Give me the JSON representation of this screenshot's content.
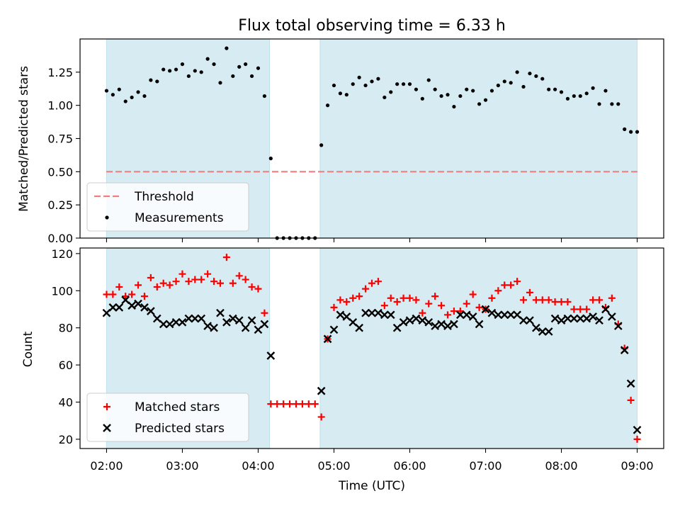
{
  "chart_data": [
    {
      "type": "scatter",
      "title": "Flux total observing time = 6.33 h",
      "xlabel": "",
      "ylabel": "Matched/Predicted stars",
      "ylim": [
        0,
        1.5
      ],
      "yticks": [
        "0.00",
        "0.25",
        "0.50",
        "0.75",
        "1.00",
        "1.25"
      ],
      "xlim": [
        "01:39",
        "09:21"
      ],
      "shaded_intervals": [
        [
          "02:00",
          "04:09"
        ],
        [
          "04:49",
          "09:00"
        ]
      ],
      "threshold": {
        "name": "Threshold",
        "value": 0.5,
        "color": "#f07f7f"
      },
      "legend_position": "lower left",
      "series": [
        {
          "name": "Measurements",
          "color": "#000000",
          "x": [
            "02:00",
            "02:05",
            "02:10",
            "02:15",
            "02:20",
            "02:25",
            "02:30",
            "02:35",
            "02:40",
            "02:45",
            "02:50",
            "02:55",
            "03:00",
            "03:05",
            "03:10",
            "03:15",
            "03:20",
            "03:25",
            "03:30",
            "03:35",
            "03:40",
            "03:45",
            "03:50",
            "03:55",
            "04:00",
            "04:05",
            "04:10",
            "04:15",
            "04:20",
            "04:25",
            "04:30",
            "04:35",
            "04:40",
            "04:45",
            "04:50",
            "04:55",
            "05:00",
            "05:05",
            "05:10",
            "05:15",
            "05:20",
            "05:25",
            "05:30",
            "05:35",
            "05:40",
            "05:45",
            "05:50",
            "05:55",
            "06:00",
            "06:05",
            "06:10",
            "06:15",
            "06:20",
            "06:25",
            "06:30",
            "06:35",
            "06:40",
            "06:45",
            "06:50",
            "06:55",
            "07:00",
            "07:05",
            "07:10",
            "07:15",
            "07:20",
            "07:25",
            "07:30",
            "07:35",
            "07:40",
            "07:45",
            "07:50",
            "07:55",
            "08:00",
            "08:05",
            "08:10",
            "08:15",
            "08:20",
            "08:25",
            "08:30",
            "08:35",
            "08:40",
            "08:45",
            "08:50",
            "08:55",
            "09:00"
          ],
          "y": [
            1.11,
            1.08,
            1.12,
            1.03,
            1.06,
            1.1,
            1.07,
            1.19,
            1.18,
            1.27,
            1.26,
            1.27,
            1.31,
            1.22,
            1.26,
            1.25,
            1.35,
            1.31,
            1.17,
            1.43,
            1.22,
            1.29,
            1.31,
            1.22,
            1.28,
            1.07,
            0.6,
            0.0,
            0.0,
            0.0,
            0.0,
            0.0,
            0.0,
            0.0,
            0.7,
            1.0,
            1.15,
            1.09,
            1.08,
            1.16,
            1.21,
            1.15,
            1.18,
            1.2,
            1.06,
            1.1,
            1.16,
            1.16,
            1.16,
            1.12,
            1.05,
            1.19,
            1.12,
            1.07,
            1.08,
            0.99,
            1.07,
            1.12,
            1.11,
            1.01,
            1.04,
            1.11,
            1.15,
            1.18,
            1.17,
            1.25,
            1.14,
            1.24,
            1.22,
            1.2,
            1.12,
            1.12,
            1.1,
            1.05,
            1.07,
            1.07,
            1.09,
            1.13,
            1.01,
            1.11,
            1.01,
            1.01,
            0.82,
            0.8,
            0.8
          ]
        }
      ]
    },
    {
      "type": "scatter",
      "title": "",
      "xlabel": "Time (UTC)",
      "ylabel": "Count",
      "ylim": [
        15,
        123
      ],
      "yticks": [
        "20",
        "40",
        "60",
        "80",
        "100",
        "120"
      ],
      "xlim": [
        "01:39",
        "09:21"
      ],
      "xticks": [
        "02:00",
        "03:00",
        "04:00",
        "05:00",
        "06:00",
        "07:00",
        "08:00",
        "09:00"
      ],
      "shaded_intervals": [
        [
          "02:00",
          "04:09"
        ],
        [
          "04:49",
          "09:00"
        ]
      ],
      "legend_position": "lower left",
      "series": [
        {
          "name": "Matched stars",
          "marker": "plus",
          "color": "#ff0000",
          "x": [
            "02:00",
            "02:05",
            "02:10",
            "02:15",
            "02:20",
            "02:25",
            "02:30",
            "02:35",
            "02:40",
            "02:45",
            "02:50",
            "02:55",
            "03:00",
            "03:05",
            "03:10",
            "03:15",
            "03:20",
            "03:25",
            "03:30",
            "03:35",
            "03:40",
            "03:45",
            "03:50",
            "03:55",
            "04:00",
            "04:05",
            "04:10",
            "04:15",
            "04:20",
            "04:25",
            "04:30",
            "04:35",
            "04:40",
            "04:45",
            "04:50",
            "04:55",
            "05:00",
            "05:05",
            "05:10",
            "05:15",
            "05:20",
            "05:25",
            "05:30",
            "05:35",
            "05:40",
            "05:45",
            "05:50",
            "05:55",
            "06:00",
            "06:05",
            "06:10",
            "06:15",
            "06:20",
            "06:25",
            "06:30",
            "06:35",
            "06:40",
            "06:45",
            "06:50",
            "06:55",
            "07:00",
            "07:05",
            "07:10",
            "07:15",
            "07:20",
            "07:25",
            "07:30",
            "07:35",
            "07:40",
            "07:45",
            "07:50",
            "07:55",
            "08:00",
            "08:05",
            "08:10",
            "08:15",
            "08:20",
            "08:25",
            "08:30",
            "08:35",
            "08:40",
            "08:45",
            "08:50",
            "08:55",
            "09:00"
          ],
          "y": [
            98,
            98,
            102,
            97,
            98,
            103,
            97,
            107,
            102,
            104,
            103,
            105,
            109,
            105,
            106,
            106,
            109,
            105,
            104,
            118,
            104,
            108,
            106,
            102,
            101,
            88,
            39,
            39,
            39,
            39,
            39,
            39,
            39,
            39,
            32,
            74,
            91,
            95,
            94,
            96,
            97,
            101,
            104,
            105,
            92,
            96,
            94,
            96,
            96,
            95,
            88,
            93,
            97,
            92,
            87,
            89,
            89,
            93,
            98,
            91,
            90,
            96,
            100,
            103,
            103,
            105,
            95,
            99,
            95,
            95,
            95,
            94,
            94,
            94,
            90,
            90,
            90,
            95,
            95,
            91,
            96,
            82,
            69,
            41,
            20
          ]
        },
        {
          "name": "Predicted stars",
          "marker": "x",
          "color": "#000000",
          "x": [
            "02:00",
            "02:05",
            "02:10",
            "02:15",
            "02:20",
            "02:25",
            "02:30",
            "02:35",
            "02:40",
            "02:45",
            "02:50",
            "02:55",
            "03:00",
            "03:05",
            "03:10",
            "03:15",
            "03:20",
            "03:25",
            "03:30",
            "03:35",
            "03:40",
            "03:45",
            "03:50",
            "03:55",
            "04:00",
            "04:05",
            "04:10",
            "04:50",
            "04:55",
            "05:00",
            "05:05",
            "05:10",
            "05:15",
            "05:20",
            "05:25",
            "05:30",
            "05:35",
            "05:40",
            "05:45",
            "05:50",
            "05:55",
            "06:00",
            "06:05",
            "06:10",
            "06:15",
            "06:20",
            "06:25",
            "06:30",
            "06:35",
            "06:40",
            "06:45",
            "06:50",
            "06:55",
            "07:00",
            "07:05",
            "07:10",
            "07:15",
            "07:20",
            "07:25",
            "07:30",
            "07:35",
            "07:40",
            "07:45",
            "07:50",
            "07:55",
            "08:00",
            "08:05",
            "08:10",
            "08:15",
            "08:20",
            "08:25",
            "08:30",
            "08:35",
            "08:40",
            "08:45",
            "08:50",
            "08:55",
            "09:00"
          ],
          "y": [
            88,
            91,
            91,
            95,
            92,
            93,
            91,
            89,
            85,
            82,
            82,
            83,
            83,
            85,
            85,
            85,
            81,
            80,
            88,
            83,
            85,
            84,
            80,
            84,
            79,
            82,
            65,
            46,
            74,
            79,
            87,
            86,
            83,
            80,
            88,
            88,
            88,
            87,
            87,
            80,
            83,
            84,
            85,
            84,
            83,
            81,
            82,
            81,
            82,
            87,
            87,
            86,
            82,
            90,
            88,
            87,
            87,
            87,
            87,
            84,
            84,
            80,
            78,
            78,
            85,
            84,
            85,
            85,
            85,
            85,
            86,
            84,
            90,
            86,
            81,
            68,
            50,
            25
          ]
        }
      ]
    }
  ]
}
